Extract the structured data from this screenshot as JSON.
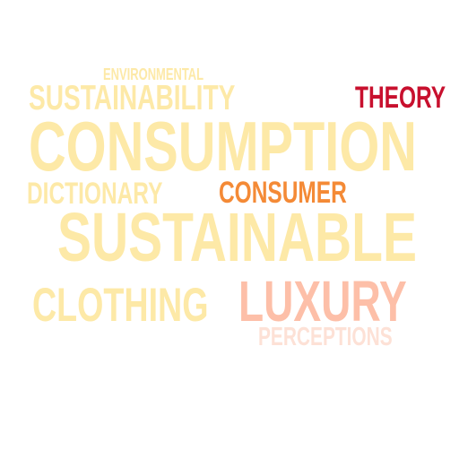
{
  "word_cloud": {
    "words": [
      {
        "id": "environmental",
        "text": "ENVIRONMENTAL",
        "color": "#fde9a7"
      },
      {
        "id": "sustainability",
        "text": "SUSTAINABILITY",
        "color": "#fde9a7"
      },
      {
        "id": "theory",
        "text": "THEORY",
        "color": "#c8102e"
      },
      {
        "id": "consumption",
        "text": "CONSUMPTION",
        "color": "#fde9a7"
      },
      {
        "id": "dictionary",
        "text": "DICTIONARY",
        "color": "#fde9a7"
      },
      {
        "id": "consumer",
        "text": "CONSUMER",
        "color": "#f48a36"
      },
      {
        "id": "sustainable",
        "text": "SUSTAINABLE",
        "color": "#fde9a7"
      },
      {
        "id": "clothing",
        "text": "CLOTHING",
        "color": "#fde9a7"
      },
      {
        "id": "luxury",
        "text": "LUXURY",
        "color": "#fdbfa8"
      },
      {
        "id": "perceptions",
        "text": "PERCEPTIONS",
        "color": "#fde1d6"
      }
    ]
  }
}
